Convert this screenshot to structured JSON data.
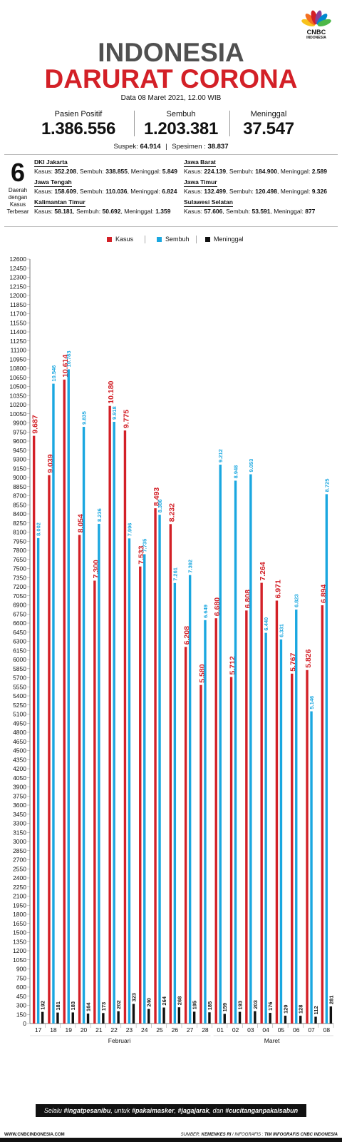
{
  "brand": {
    "logo_text": "CNBC",
    "logo_sub": "INDONESIA",
    "peacock_colors": [
      "#f7c21c",
      "#f37021",
      "#d32027",
      "#8a3f97",
      "#0089cf",
      "#4db848"
    ]
  },
  "header": {
    "title_line1": "INDONESIA",
    "title_line2": "DARURAT CORONA",
    "date": "Data 08 Maret 2021, 12.00 WIB"
  },
  "stats": [
    {
      "label": "Pasien Positif",
      "value": "1.386.556"
    },
    {
      "label": "Sembuh",
      "value": "1.203.381"
    },
    {
      "label": "Meninggal",
      "value": "37.547"
    }
  ],
  "suspek": {
    "suspek_label": "Suspek:",
    "suspek_value": "64.914",
    "spesimen_label": "Spesimen :",
    "spesimen_value": "38.837"
  },
  "regions_panel": {
    "count": "6",
    "label_lines": [
      "Daerah",
      "dengan",
      "Kasus",
      "Terbesar"
    ],
    "regions": [
      {
        "name": "DKI Jakarta",
        "kasus": "352.208",
        "sembuh": "338.855",
        "meninggal": "5.849"
      },
      {
        "name": "Jawa Barat",
        "kasus": "224.139",
        "sembuh": "184.900",
        "meninggal": "2.589"
      },
      {
        "name": "Jawa Tengah",
        "kasus": "158.609",
        "sembuh": "110.036",
        "meninggal": "6.824"
      },
      {
        "name": "Jawa Timur",
        "kasus": "132.499",
        "sembuh": "120.498",
        "meninggal": "9.326"
      },
      {
        "name": "Kalimantan Timur",
        "kasus": "58.181",
        "sembuh": "50.692",
        "meninggal": "1.359"
      },
      {
        "name": "Sulawesi Selatan",
        "kasus": "57.606",
        "sembuh": "53.591",
        "meninggal": "877"
      }
    ],
    "labels": {
      "kasus": "Kasus:",
      "sembuh": "Sembuh:",
      "meninggal": "Meninggal:"
    }
  },
  "legend": [
    {
      "name": "Kasus",
      "color": "#d32027"
    },
    {
      "name": "Sembuh",
      "color": "#1aa7e0"
    },
    {
      "name": "Meninggal",
      "color": "#111111"
    }
  ],
  "chart_data": {
    "type": "bar",
    "categories": [
      "17",
      "18",
      "19",
      "20",
      "21",
      "22",
      "23",
      "24",
      "25",
      "26",
      "27",
      "28",
      "01",
      "02",
      "03",
      "04",
      "05",
      "06",
      "07",
      "08"
    ],
    "months": [
      {
        "name": "Februari",
        "from": 0,
        "to": 11
      },
      {
        "name": "Maret",
        "from": 12,
        "to": 19
      }
    ],
    "ylim": [
      0,
      12600
    ],
    "ytick_step": 150,
    "series": [
      {
        "name": "Kasus",
        "color": "#d32027",
        "values": [
          9687,
          9039,
          10614,
          8054,
          7300,
          10180,
          9775,
          7533,
          8493,
          8232,
          6208,
          5580,
          6680,
          5712,
          6808,
          7264,
          6971,
          5767,
          5826,
          6894
        ],
        "labels": [
          "9.687",
          "9.039",
          "10.614",
          "8.054",
          "7.300",
          "10.180",
          "9.775",
          "7.533",
          "8.493",
          "8.232",
          "6.208",
          "5.580",
          "6.680",
          "5.712",
          "6.808",
          "7.264",
          "6.971",
          "5.767",
          "5.826",
          "6.894"
        ]
      },
      {
        "name": "Sembuh",
        "color": "#1aa7e0",
        "values": [
          8002,
          10546,
          10783,
          9835,
          8236,
          9918,
          7996,
          7735,
          8386,
          7261,
          7392,
          6649,
          9212,
          8948,
          9053,
          6440,
          6331,
          6823,
          5146,
          8725
        ],
        "labels": [
          "8.002",
          "10.546",
          "10.783",
          "9.835",
          "8.236",
          "9.918",
          "7.996",
          "7.735",
          "8.386",
          "7.261",
          "7.392",
          "6.649",
          "9.212",
          "8.948",
          "9.053",
          "6.440",
          "6.331",
          "6.823",
          "5.146",
          "8.725"
        ]
      },
      {
        "name": "Meninggal",
        "color": "#111111",
        "values": [
          192,
          181,
          183,
          164,
          173,
          202,
          323,
          240,
          264,
          268,
          195,
          185,
          159,
          193,
          203,
          176,
          129,
          128,
          112,
          281
        ],
        "labels": [
          "192",
          "181",
          "183",
          "164",
          "173",
          "202",
          "323",
          "240",
          "264",
          "268",
          "195",
          "185",
          "159",
          "193",
          "203",
          "176",
          "129",
          "128",
          "112",
          "281"
        ]
      }
    ]
  },
  "banner": {
    "p1": "Selalu ",
    "t1": "#ingatpesanibu",
    "p2": ", untuk ",
    "t2": "#pakaimasker",
    "p3": ", ",
    "t3": "#jagajarak",
    "p4": ", dan ",
    "t4": "#cucitanganpakaisabun"
  },
  "footer": {
    "left": "WWW.CNBCINDONESIA.COM",
    "sumber_label": "SUMBER: ",
    "sumber_value": "KEMENKES RI",
    "infografis_label": " / INFOGRAFIS : ",
    "infografis_value": "TIM INFOGRAFIS CNBC INDONESIA"
  }
}
